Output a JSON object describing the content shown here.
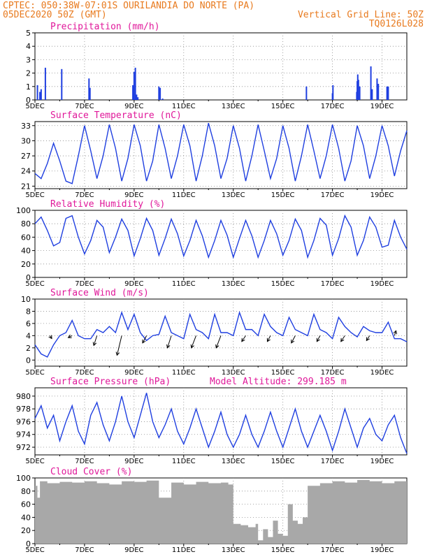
{
  "header": {
    "left_line1": "CPTEC:  050:38W-07:01S  OURILANDIA DO NORTE (PA)",
    "left_line2": "05DEC2020 50Z (GMT)",
    "right_line1": "Vertical Grid Line: 50Z",
    "right_line2": "TQ0126L028"
  },
  "colors": {
    "header": "#e87a1e",
    "title": "#e0189a",
    "series": "#1f3fe0",
    "cloud": "#a8a8a8",
    "wind_arrow": "#000000",
    "grid": "#8c8c8c"
  },
  "x_ticks": [
    "5DEC",
    "7DEC",
    "9DEC",
    "11DEC",
    "13DEC",
    "15DEC",
    "17DEC",
    "19DEC"
  ],
  "chart_data": [
    {
      "id": "precip",
      "type": "bar",
      "title": "Precipitation (mm/h)",
      "unit": "mm/h",
      "x_unit": "days since 05DEC 00Z",
      "xlim": [
        0,
        15
      ],
      "ylim": [
        0,
        5
      ],
      "yticks": [
        "0",
        "1",
        "2",
        "3",
        "4",
        "5"
      ],
      "x": [
        0.1,
        0.2,
        0.25,
        0.42,
        1.08,
        2.18,
        2.22,
        3.95,
        4.0,
        4.05,
        4.1,
        4.15,
        5.0,
        5.05,
        5.15,
        10.95,
        12.0,
        12.02,
        12.98,
        13.0,
        13.02,
        13.05,
        13.1,
        13.55,
        13.6,
        13.8,
        13.85,
        14.2,
        14.25
      ],
      "values": [
        1.1,
        0.6,
        0.8,
        2.4,
        2.3,
        1.6,
        0.9,
        1.1,
        2.1,
        2.4,
        0.4,
        0.2,
        1.0,
        0.9,
        0.1,
        1.0,
        0.5,
        1.1,
        0.6,
        1.4,
        1.9,
        1.5,
        1.0,
        2.5,
        0.8,
        1.6,
        1.2,
        1.0,
        1.0
      ]
    },
    {
      "id": "temp",
      "type": "line",
      "title": "Surface Temperature (nC)",
      "unit": "C",
      "x_unit": "days since 05DEC 00Z",
      "xlim": [
        0,
        15
      ],
      "ylim": [
        20.5,
        33.8
      ],
      "yticks": [
        "21",
        "24",
        "27",
        "30",
        "33"
      ],
      "x": [
        0,
        0.25,
        0.5,
        0.75,
        1,
        1.25,
        1.5,
        1.75,
        2,
        2.25,
        2.5,
        2.75,
        3,
        3.25,
        3.5,
        3.75,
        4,
        4.25,
        4.5,
        4.75,
        5,
        5.25,
        5.5,
        5.75,
        6,
        6.25,
        6.5,
        6.75,
        7,
        7.25,
        7.5,
        7.75,
        8,
        8.25,
        8.5,
        8.75,
        9,
        9.25,
        9.5,
        9.75,
        10,
        10.25,
        10.5,
        10.75,
        11,
        11.25,
        11.5,
        11.75,
        12,
        12.25,
        12.5,
        12.75,
        13,
        13.25,
        13.5,
        13.75,
        14,
        14.25,
        14.5,
        14.75,
        15
      ],
      "values": [
        23.5,
        22.5,
        25.5,
        29.5,
        26.0,
        22.0,
        21.5,
        27.0,
        33.0,
        28.0,
        22.5,
        27.0,
        33.2,
        28.5,
        22.0,
        26.5,
        33.2,
        29.0,
        22.0,
        26.0,
        33.2,
        28.5,
        22.5,
        27.0,
        33.2,
        29.0,
        22.0,
        27.0,
        33.5,
        29.0,
        22.5,
        26.5,
        33.0,
        28.5,
        22.0,
        27.0,
        33.2,
        28.0,
        22.5,
        26.5,
        33.0,
        28.5,
        22.0,
        27.0,
        33.2,
        28.0,
        22.5,
        27.0,
        33.2,
        28.5,
        22.0,
        26.0,
        33.0,
        29.0,
        22.5,
        27.0,
        33.0,
        29.0,
        23.0,
        28.0,
        32.0
      ]
    },
    {
      "id": "rh",
      "type": "line",
      "title": "Relative Humidity (%)",
      "unit": "%",
      "x_unit": "days since 05DEC 00Z",
      "xlim": [
        0,
        15
      ],
      "ylim": [
        0,
        100
      ],
      "yticks": [
        "0",
        "20",
        "40",
        "60",
        "80",
        "100"
      ],
      "x": [
        0,
        0.25,
        0.5,
        0.75,
        1,
        1.25,
        1.5,
        1.75,
        2,
        2.25,
        2.5,
        2.75,
        3,
        3.25,
        3.5,
        3.75,
        4,
        4.25,
        4.5,
        4.75,
        5,
        5.25,
        5.5,
        5.75,
        6,
        6.25,
        6.5,
        6.75,
        7,
        7.25,
        7.5,
        7.75,
        8,
        8.25,
        8.5,
        8.75,
        9,
        9.25,
        9.5,
        9.75,
        10,
        10.25,
        10.5,
        10.75,
        11,
        11.25,
        11.5,
        11.75,
        12,
        12.25,
        12.5,
        12.75,
        13,
        13.25,
        13.5,
        13.75,
        14,
        14.25,
        14.5,
        14.75,
        15
      ],
      "values": [
        80,
        90,
        70,
        47,
        52,
        88,
        92,
        60,
        35,
        55,
        85,
        75,
        37,
        60,
        87,
        70,
        32,
        58,
        88,
        70,
        33,
        58,
        87,
        65,
        32,
        55,
        85,
        62,
        30,
        55,
        85,
        63,
        30,
        58,
        85,
        62,
        30,
        55,
        85,
        65,
        33,
        55,
        87,
        70,
        30,
        55,
        88,
        78,
        33,
        58,
        92,
        75,
        33,
        55,
        90,
        75,
        45,
        48,
        85,
        60,
        42
      ]
    },
    {
      "id": "wind",
      "type": "line",
      "title": "Surface Wind (m/s)",
      "unit": "m/s",
      "x_unit": "days since 05DEC 00Z",
      "xlim": [
        0,
        15
      ],
      "ylim": [
        -1,
        10
      ],
      "yticks": [
        "0",
        "2",
        "4",
        "6",
        "8",
        "10"
      ],
      "x": [
        0,
        0.25,
        0.5,
        0.75,
        1,
        1.25,
        1.5,
        1.75,
        2,
        2.25,
        2.5,
        2.75,
        3,
        3.25,
        3.5,
        3.75,
        4,
        4.25,
        4.5,
        4.75,
        5,
        5.25,
        5.5,
        5.75,
        6,
        6.25,
        6.5,
        6.75,
        7,
        7.25,
        7.5,
        7.75,
        8,
        8.25,
        8.5,
        8.75,
        9,
        9.25,
        9.5,
        9.75,
        10,
        10.25,
        10.5,
        10.75,
        11,
        11.25,
        11.5,
        11.75,
        12,
        12.25,
        12.5,
        12.75,
        13,
        13.25,
        13.5,
        13.75,
        14,
        14.25,
        14.5,
        14.75,
        15
      ],
      "values": [
        2.5,
        1.0,
        0.5,
        2.5,
        4.0,
        4.5,
        6.5,
        4.0,
        3.5,
        3.5,
        5.0,
        4.5,
        5.5,
        4.5,
        7.8,
        5.0,
        7.5,
        4.5,
        3.2,
        4.0,
        4.2,
        7.2,
        4.5,
        4.0,
        3.5,
        7.5,
        5.0,
        4.5,
        3.5,
        7.5,
        4.5,
        4.5,
        4.0,
        7.8,
        5.0,
        5.0,
        4.0,
        7.5,
        5.5,
        4.5,
        4.0,
        7.0,
        5.0,
        4.5,
        4.0,
        7.5,
        5.0,
        4.5,
        3.5,
        7.0,
        5.5,
        4.5,
        3.8,
        5.5,
        4.8,
        4.5,
        4.5,
        6.2,
        3.5,
        3.5,
        3.0
      ],
      "arrows": [
        {
          "x": 0.6,
          "dx": 0.25,
          "dy": -0.6
        },
        {
          "x": 1.5,
          "dx": -0.5,
          "dy": -0.4
        },
        {
          "x": 2.5,
          "dx": -0.4,
          "dy": -2.0
        },
        {
          "x": 3.5,
          "dx": -0.6,
          "dy": -4.0
        },
        {
          "x": 4.5,
          "dx": -0.5,
          "dy": -1.5
        },
        {
          "x": 5.5,
          "dx": -0.5,
          "dy": -2.5
        },
        {
          "x": 6.5,
          "dx": -0.6,
          "dy": -2.5
        },
        {
          "x": 7.5,
          "dx": -0.6,
          "dy": -2.5
        },
        {
          "x": 8.5,
          "dx": -0.5,
          "dy": -1.2
        },
        {
          "x": 9.5,
          "dx": -0.4,
          "dy": -1.2
        },
        {
          "x": 10.5,
          "dx": -0.5,
          "dy": -1.5
        },
        {
          "x": 11.5,
          "dx": -0.4,
          "dy": -1.2
        },
        {
          "x": 12.5,
          "dx": -0.5,
          "dy": -1.2
        },
        {
          "x": 13.5,
          "dx": -0.4,
          "dy": -1.0
        },
        {
          "x": 14.5,
          "dx": 0.2,
          "dy": 1.0
        }
      ]
    },
    {
      "id": "pressure",
      "type": "line",
      "title": "Surface Pressure (hPa)",
      "annotation": "Model Altitude: 299.185 m",
      "unit": "hPa",
      "x_unit": "days since 05DEC 00Z",
      "xlim": [
        0,
        15
      ],
      "ylim": [
        970.8,
        981.3
      ],
      "yticks": [
        "972",
        "974",
        "976",
        "978",
        "980"
      ],
      "x": [
        0,
        0.25,
        0.5,
        0.75,
        1,
        1.25,
        1.5,
        1.75,
        2,
        2.25,
        2.5,
        2.75,
        3,
        3.25,
        3.5,
        3.75,
        4,
        4.25,
        4.5,
        4.75,
        5,
        5.25,
        5.5,
        5.75,
        6,
        6.25,
        6.5,
        6.75,
        7,
        7.25,
        7.5,
        7.75,
        8,
        8.25,
        8.5,
        8.75,
        9,
        9.25,
        9.5,
        9.75,
        10,
        10.25,
        10.5,
        10.75,
        11,
        11.25,
        11.5,
        11.75,
        12,
        12.25,
        12.5,
        12.75,
        13,
        13.25,
        13.5,
        13.75,
        14,
        14.25,
        14.5,
        14.75,
        15
      ],
      "values": [
        976.5,
        978.5,
        975.0,
        977.0,
        973.0,
        976.0,
        978.5,
        974.5,
        972.5,
        977.0,
        979.0,
        975.5,
        973.0,
        976.0,
        980.0,
        976.0,
        973.5,
        977.0,
        980.5,
        976.0,
        973.5,
        975.5,
        978.0,
        974.5,
        972.5,
        975.0,
        978.0,
        975.0,
        972.0,
        974.5,
        977.5,
        974.0,
        972.0,
        974.0,
        977.0,
        974.0,
        972.0,
        974.5,
        977.5,
        974.5,
        972.0,
        975.0,
        978.0,
        974.5,
        972.0,
        974.5,
        977.0,
        974.5,
        971.5,
        974.5,
        978.0,
        975.0,
        972.0,
        975.0,
        976.5,
        974.0,
        973.0,
        975.5,
        977.0,
        973.5,
        971.0
      ]
    },
    {
      "id": "cloud",
      "type": "area",
      "title": "Cloud Cover (%)",
      "unit": "%",
      "x_unit": "days since 05DEC 00Z",
      "xlim": [
        0,
        15
      ],
      "ylim": [
        0,
        100
      ],
      "yticks": [
        "0",
        "20",
        "40",
        "60",
        "80",
        "100"
      ],
      "x": [
        0,
        0.1,
        0.2,
        0.5,
        1,
        1.5,
        2,
        2.5,
        3,
        3.5,
        4,
        4.5,
        5,
        5.5,
        6,
        6.5,
        7,
        7.5,
        7.8,
        8.0,
        8.3,
        8.6,
        8.9,
        9.0,
        9.2,
        9.4,
        9.6,
        9.8,
        10.0,
        10.2,
        10.4,
        10.6,
        10.8,
        11.0,
        11.5,
        12,
        12.5,
        13,
        13.5,
        14,
        14.5,
        15
      ],
      "values": [
        88,
        70,
        95,
        92,
        94,
        93,
        95,
        92,
        90,
        95,
        94,
        96,
        70,
        93,
        90,
        94,
        92,
        93,
        90,
        30,
        28,
        25,
        30,
        5,
        22,
        10,
        35,
        15,
        12,
        60,
        35,
        30,
        40,
        88,
        92,
        95,
        93,
        97,
        95,
        92,
        95,
        97
      ]
    }
  ]
}
